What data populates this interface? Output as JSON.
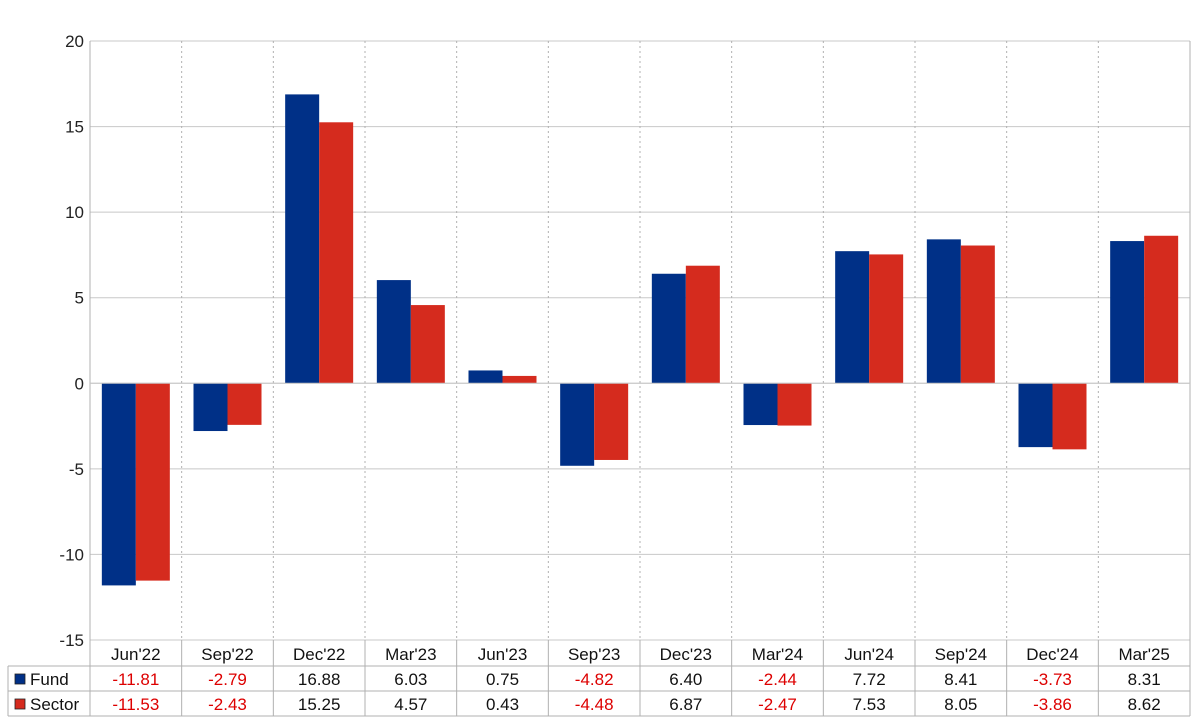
{
  "chart_data": {
    "type": "bar",
    "categories": [
      "Jun'22",
      "Sep'22",
      "Dec'22",
      "Mar'23",
      "Jun'23",
      "Sep'23",
      "Dec'23",
      "Mar'24",
      "Jun'24",
      "Sep'24",
      "Dec'24",
      "Mar'25"
    ],
    "series": [
      {
        "name": "Fund",
        "color": "#003087",
        "values": [
          -11.81,
          -2.79,
          16.88,
          6.03,
          0.75,
          -4.82,
          6.4,
          -2.44,
          7.72,
          8.41,
          -3.73,
          8.31
        ],
        "labels": [
          "-11.81",
          "-2.79",
          "16.88",
          "6.03",
          "0.75",
          "-4.82",
          "6.40",
          "-2.44",
          "7.72",
          "8.41",
          "-3.73",
          "8.31"
        ]
      },
      {
        "name": "Sector",
        "color": "#d52b1e",
        "values": [
          -11.53,
          -2.43,
          15.25,
          4.57,
          0.43,
          -4.48,
          6.87,
          -2.47,
          7.53,
          8.05,
          -3.86,
          8.62
        ],
        "labels": [
          "-11.53",
          "-2.43",
          "15.25",
          "4.57",
          "0.43",
          "-4.48",
          "6.87",
          "-2.47",
          "7.53",
          "8.05",
          "-3.86",
          "8.62"
        ]
      }
    ],
    "yticks": [
      "20",
      "15",
      "10",
      "5",
      "0",
      "-5",
      "-10",
      "-15"
    ],
    "ylim": [
      -15,
      20
    ],
    "grid": true,
    "negative_color": "#dd0000",
    "positive_color": "#111111",
    "legend": "data-table-bottom"
  }
}
